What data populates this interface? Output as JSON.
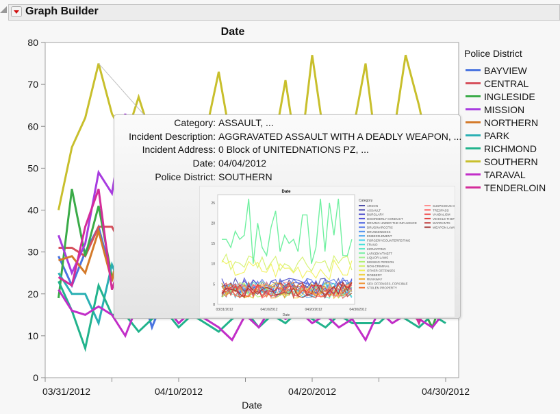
{
  "window": {
    "title": "Graph Builder"
  },
  "chart_data": {
    "type": "line",
    "title": "Date",
    "xlabel": "Date",
    "ylabel": "",
    "ylim": [
      0,
      80
    ],
    "yticks": [
      0,
      10,
      20,
      30,
      40,
      50,
      60,
      70,
      80
    ],
    "xlim": [
      "03/31/2012",
      "05/01/2012"
    ],
    "xticks": [
      "03/31/2012",
      "04/10/2012",
      "04/20/2012",
      "04/30/2012"
    ],
    "x_start": "04/01/2012",
    "legend_title": "Police District",
    "legend_position": "right",
    "grid": false,
    "series": [
      {
        "name": "BAYVIEW",
        "color": "#4a74e0",
        "values": [
          29,
          22,
          30,
          36,
          24,
          26,
          23,
          12,
          20,
          18,
          22,
          19,
          21,
          17,
          23,
          20,
          18,
          22,
          19,
          21,
          18,
          24,
          20,
          17,
          22,
          19,
          21,
          20,
          18,
          22
        ]
      },
      {
        "name": "CENTRAL",
        "color": "#d6505c",
        "values": [
          31,
          31,
          29,
          36,
          36,
          30,
          32,
          33,
          28,
          30,
          27,
          31,
          29,
          26,
          30,
          28,
          32,
          27,
          29,
          31,
          26,
          30,
          28,
          25,
          29,
          27,
          30,
          28,
          26,
          29
        ]
      },
      {
        "name": "INGLESIDE",
        "color": "#3aab48",
        "values": [
          19,
          45,
          29,
          41,
          24,
          26,
          20,
          16,
          18,
          15,
          20,
          17,
          19,
          16,
          21,
          18,
          15,
          20,
          17,
          19,
          16,
          22,
          18,
          15,
          19,
          17,
          20,
          18,
          12,
          21
        ]
      },
      {
        "name": "MISSION",
        "color": "#a83ce0",
        "values": [
          34,
          25,
          32,
          49,
          44,
          63,
          36,
          37,
          38,
          33,
          35,
          30,
          28,
          32,
          27,
          33,
          36,
          29,
          31,
          28,
          34,
          30,
          26,
          35,
          32,
          29,
          33,
          31,
          28,
          30
        ]
      },
      {
        "name": "NORTHERN",
        "color": "#d47a2a",
        "values": [
          28,
          29,
          25,
          35,
          23,
          39,
          45,
          41,
          38,
          36,
          40,
          34,
          37,
          33,
          39,
          35,
          38,
          36,
          41,
          34,
          37,
          39,
          35,
          33,
          38,
          36,
          34,
          37,
          35,
          39
        ]
      },
      {
        "name": "PARK",
        "color": "#2ab0b4",
        "values": [
          25,
          20,
          20,
          13,
          27,
          19,
          22,
          23,
          21,
          18,
          20,
          22,
          19,
          21,
          17,
          20,
          23,
          19,
          21,
          18,
          22,
          20,
          18,
          21,
          19,
          22,
          20,
          18,
          21,
          20
        ]
      },
      {
        "name": "RICHMOND",
        "color": "#22b38c",
        "values": [
          23,
          16,
          7,
          22,
          15,
          15,
          11,
          14,
          16,
          12,
          15,
          13,
          11,
          14,
          16,
          12,
          15,
          13,
          16,
          14,
          12,
          15,
          13,
          13,
          13,
          16,
          14,
          12,
          15,
          13
        ]
      },
      {
        "name": "SOUTHERN",
        "color": "#c8bf2c",
        "values": [
          40,
          55,
          62,
          75,
          63,
          57,
          67,
          57,
          52,
          55,
          50,
          58,
          73,
          55,
          50,
          56,
          53,
          71,
          50,
          77,
          55,
          52,
          58,
          75,
          50,
          56,
          77,
          65,
          50,
          58
        ]
      },
      {
        "name": "TARAVAL",
        "color": "#c22ec8",
        "values": [
          21,
          16,
          15,
          17,
          15,
          10,
          18,
          20,
          17,
          13,
          16,
          14,
          12,
          9,
          15,
          12,
          17,
          14,
          16,
          13,
          15,
          12,
          14,
          9,
          16,
          13,
          15,
          14,
          12,
          16
        ]
      },
      {
        "name": "TENDERLOIN",
        "color": "#d42c9a",
        "values": [
          24,
          22,
          36,
          45,
          21,
          31,
          20,
          19,
          22,
          18,
          21,
          19,
          23,
          17,
          20,
          22,
          18,
          21,
          19,
          23,
          20,
          17,
          22,
          19,
          21,
          18,
          20,
          13,
          22,
          19
        ]
      }
    ]
  },
  "tooltip": {
    "rows": [
      {
        "label": "Category:",
        "value": "ASSAULT, ..."
      },
      {
        "label": "Incident Description:",
        "value": "AGGRAVATED ASSAULT WITH A DEADLY WEAPON, ..."
      },
      {
        "label": "Incident Address:",
        "value": "0 Block of UNITEDNATIONS PZ, ..."
      },
      {
        "label": "Date:",
        "value": "04/04/2012"
      },
      {
        "label": "Police District:",
        "value": "SOUTHERN"
      }
    ],
    "thumbnail": {
      "title": "Date",
      "xlabel": "Date",
      "yticks": [
        "0",
        "5",
        "10",
        "15",
        "20",
        "25"
      ],
      "xticks": [
        "03/31/2012",
        "04/10/2012",
        "04/20/2012",
        "04/30/2012"
      ],
      "legend_title": "Category",
      "categories": [
        "ARSON",
        "ASSAULT",
        "BURGLARY",
        "DISORDERLY CONDUCT",
        "DRIVING UNDER THE INFLUENCE",
        "DRUG/NARCOTIC",
        "DRUNKENNESS",
        "EMBEZZLEMENT",
        "FORGERY/COUNTERFEITING",
        "FRAUD",
        "KIDNAPPING",
        "LARCENY/THEFT",
        "LIQUOR LAWS",
        "MISSING PERSON",
        "NON-CRIMINAL",
        "OTHER OFFENSES",
        "ROBBERY",
        "RUNAWAY",
        "SEX OFFENSES, FORCIBLE",
        "STOLEN PROPERTY",
        "SUSPICIOUS OCC",
        "TRESPASS",
        "VANDALISM",
        "VEHICLE THEFT",
        "WARRANTS",
        "WEAPON LAWS"
      ],
      "colors": [
        "#5050a8",
        "#4848b0",
        "#4040c8",
        "#5050d8",
        "#4a60e0",
        "#4a70e8",
        "#5090f0",
        "#50a8f0",
        "#40d0f0",
        "#40e0d8",
        "#60e8c8",
        "#70f0a0",
        "#a0f090",
        "#b0f070",
        "#d0f060",
        "#f0f050",
        "#f0d040",
        "#f0b030",
        "#f09030",
        "#f07030",
        "#ff9090",
        "#ff6060",
        "#f04040",
        "#e04040",
        "#c04040",
        "#a03030"
      ],
      "larceny_values": [
        16,
        16,
        14,
        18,
        16,
        17,
        26,
        10,
        20,
        14,
        12,
        19,
        23,
        13,
        17,
        15,
        16,
        13,
        22,
        22,
        10,
        14,
        26,
        13,
        25,
        17,
        26,
        12,
        12,
        16
      ]
    }
  }
}
